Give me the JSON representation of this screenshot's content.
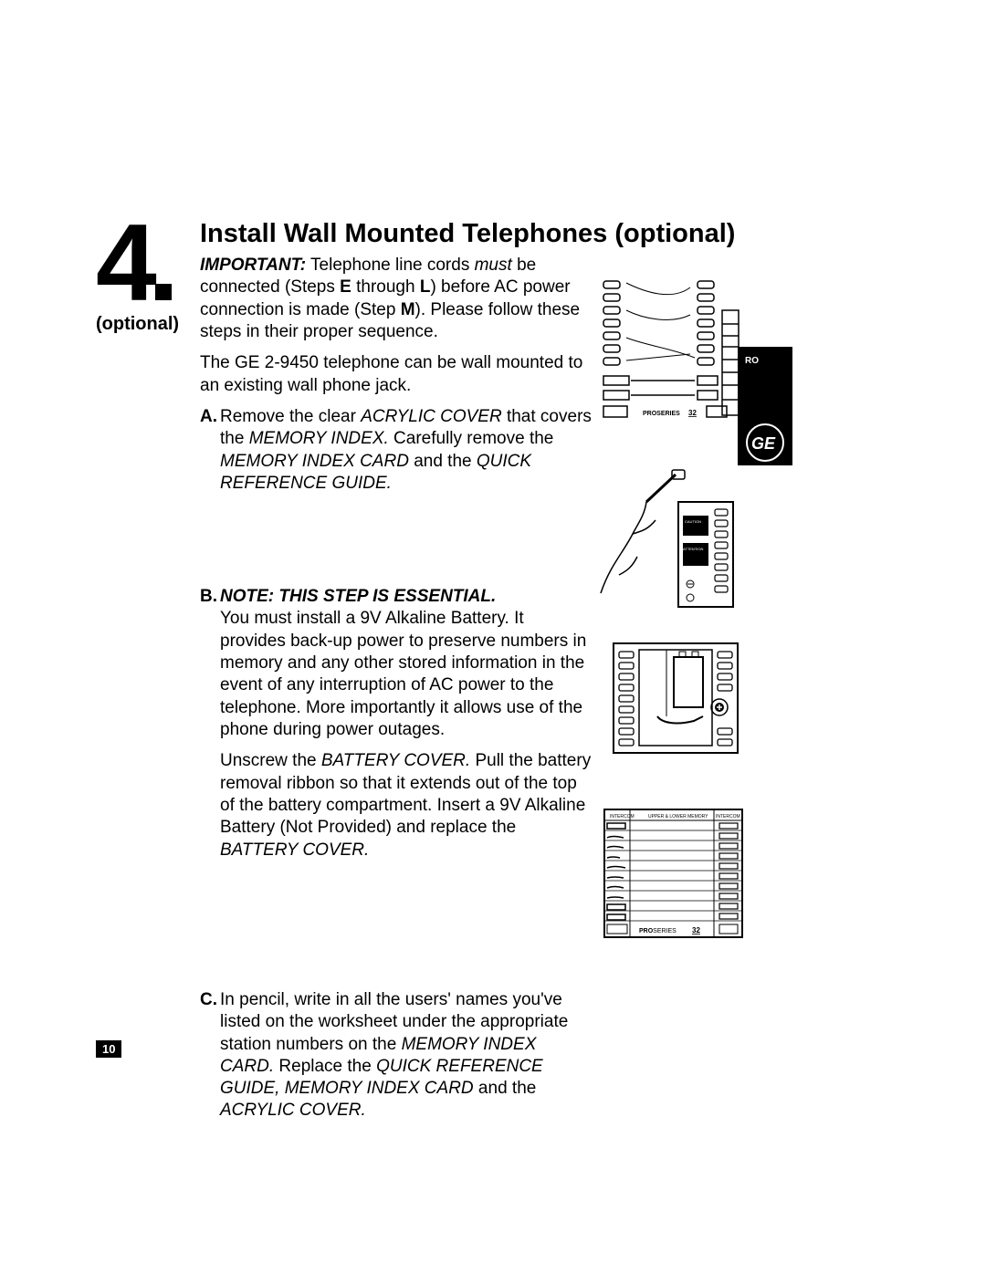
{
  "step_number": "4",
  "optional_label": "(optional)",
  "title": "Install Wall Mounted Telephones (optional)",
  "intro_html": "<span class='bolditalic'>IMPORTANT:</span> Telephone line cords <span class='italic'>must</span> be connected (Steps <span class='bold'>E</span> through <span class='bold'>L</span>) before AC power connection is made (Step <span class='bold'>M</span>). Please follow these steps in their proper sequence.",
  "intro2": "The GE 2-9450 telephone can be wall mounted to an existing wall phone jack.",
  "stepA_html": "Remove the clear <span class='italic'>ACRYLIC COVER</span> that covers the <span class='italic'>MEMORY INDEX.</span> Carefully remove the <span class='italic'>MEMORY INDEX CARD</span> and the <span class='italic'>QUICK REFERENCE GUIDE.</span>",
  "stepB_note": "NOTE: THIS STEP IS ESSENTIAL.",
  "stepB_p1": "You must install a 9V Alkaline Battery. It provides back-up power to preserve numbers in memory and any other stored information in the event of any interruption of AC power to the telephone. More importantly it allows use of the phone during power outages.",
  "stepB_p2_html": "Unscrew the <span class='italic'>BATTERY COVER.</span> Pull the battery removal ribbon so that it extends out of the top of the battery compartment. Insert a 9V Alkaline Battery (Not Provided) and replace the <span class='italic'>BATTERY COVER.</span>",
  "stepC_html": "In pencil, write in all the users' names you've listed on the worksheet under the appropriate station numbers on the <span class='italic'>MEMORY INDEX CARD.</span> Replace the <span class='italic'>QUICK REFERENCE GUIDE, MEMORY INDEX CARD</span> and the <span class='italic'>ACRYLIC COVER.</span>",
  "page_number": "10",
  "diagram_labels": {
    "proseries": "PROSERIES",
    "model": "32"
  }
}
